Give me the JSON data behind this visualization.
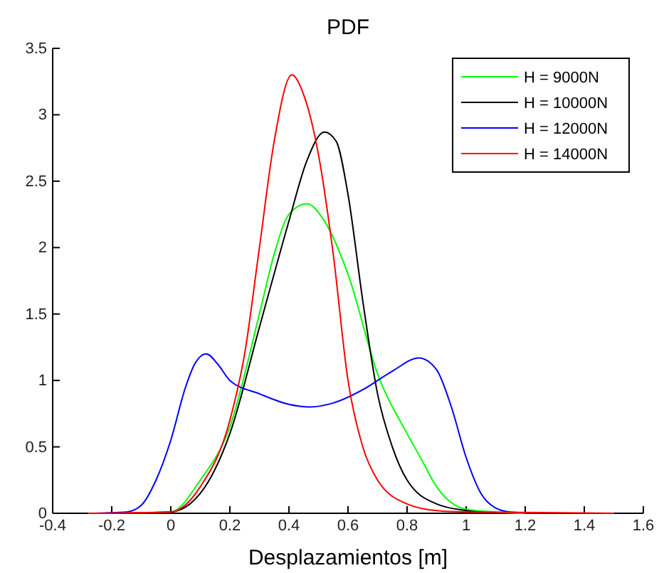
{
  "chart_data": {
    "type": "line",
    "title": "PDF",
    "xlabel": "Desplazamientos [m]",
    "xlim": [
      -0.4,
      1.6
    ],
    "xticks": [
      -0.4,
      -0.2,
      0,
      0.2,
      0.4,
      0.6,
      0.8,
      1,
      1.2,
      1.4,
      1.6
    ],
    "ylim": [
      0,
      3.5
    ],
    "yticks": [
      0,
      0.5,
      1,
      1.5,
      2,
      2.5,
      3,
      3.5
    ],
    "grid": false,
    "legend": "top right",
    "marker": "none",
    "line_style": "solid",
    "series": [
      {
        "name": "H = 9000N",
        "color": "#00ff00",
        "x": [
          -0.2,
          0,
          0.1,
          0.2,
          0.3,
          0.35,
          0.4,
          0.46,
          0.52,
          0.6,
          0.7,
          0.8,
          0.85,
          0.9,
          0.95,
          1.0,
          1.1,
          1.2
        ],
        "values": [
          0,
          0.01,
          0.25,
          0.65,
          1.5,
          1.95,
          2.25,
          2.33,
          2.2,
          1.8,
          1.05,
          0.6,
          0.4,
          0.2,
          0.08,
          0.03,
          0.01,
          0
        ]
      },
      {
        "name": "H = 10000N",
        "color": "#000000",
        "x": [
          -0.2,
          0,
          0.1,
          0.2,
          0.3,
          0.4,
          0.46,
          0.52,
          0.56,
          0.6,
          0.65,
          0.7,
          0.75,
          0.8,
          0.9,
          1.0,
          1.1
        ],
        "values": [
          0,
          0.01,
          0.15,
          0.6,
          1.4,
          2.2,
          2.65,
          2.87,
          2.8,
          2.4,
          1.6,
          0.9,
          0.5,
          0.25,
          0.07,
          0.02,
          0
        ]
      },
      {
        "name": "H = 12000N",
        "color": "#0000ff",
        "x": [
          -0.28,
          -0.15,
          -0.1,
          -0.05,
          0,
          0.05,
          0.08,
          0.12,
          0.16,
          0.2,
          0.3,
          0.4,
          0.47,
          0.55,
          0.65,
          0.75,
          0.84,
          0.9,
          0.95,
          1.0,
          1.05,
          1.1,
          1.15,
          1.25
        ],
        "values": [
          0,
          0.01,
          0.06,
          0.25,
          0.55,
          0.95,
          1.12,
          1.2,
          1.12,
          1.0,
          0.9,
          0.82,
          0.8,
          0.83,
          0.93,
          1.07,
          1.17,
          1.08,
          0.8,
          0.42,
          0.15,
          0.04,
          0.01,
          0
        ]
      },
      {
        "name": "H = 14000N",
        "color": "#ff0000",
        "x": [
          -0.28,
          0,
          0.1,
          0.2,
          0.25,
          0.3,
          0.35,
          0.41,
          0.45,
          0.5,
          0.55,
          0.6,
          0.65,
          0.7,
          0.8,
          0.9,
          1.0,
          1.5
        ],
        "values": [
          0,
          0.01,
          0.2,
          0.7,
          1.2,
          2.0,
          2.8,
          3.3,
          3.15,
          2.7,
          1.95,
          1.0,
          0.5,
          0.25,
          0.07,
          0.02,
          0.01,
          0
        ]
      }
    ]
  }
}
